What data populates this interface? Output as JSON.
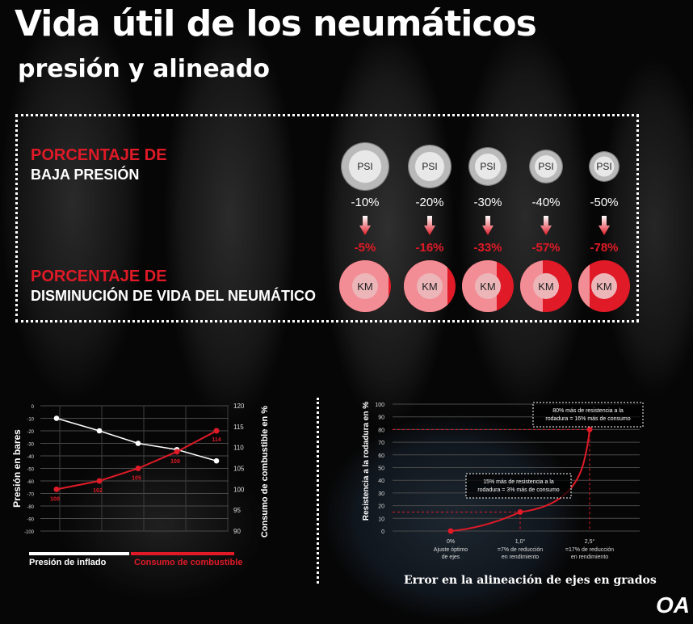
{
  "header": {
    "title": "Vida útil de los neumáticos",
    "subtitle": "presión y alineado"
  },
  "panel": {
    "pressure_label_red": "PORCENTAJE DE",
    "pressure_label_white": "BAJA PRESIÓN",
    "life_label_red": "PORCENTAJE DE",
    "life_label_white": "DISMINUCIÓN DE VIDA DEL NEUMÁTICO",
    "psi_label": "PSI",
    "km_label": "KM",
    "pressure_drop": [
      "-10%",
      "-20%",
      "-30%",
      "-40%",
      "-50%"
    ],
    "life_reduction": [
      "-5%",
      "-16%",
      "-33%",
      "-57%",
      "-78%"
    ],
    "life_reduction_values": [
      5,
      16,
      33,
      57,
      78
    ]
  },
  "colors": {
    "accent": "#e01a27",
    "white": "#ffffff",
    "grid": "#555555"
  },
  "chart_data": [
    {
      "type": "line",
      "ylabel": "Presión en bares",
      "y2label": "Consumo de combustible en %",
      "ylim": [
        -100,
        0
      ],
      "y2lim": [
        90,
        120
      ],
      "yticks": [
        "0",
        "-10",
        "-20",
        "-30",
        "-40",
        "-50",
        "-60",
        "-70",
        "-80",
        "-90",
        "-100"
      ],
      "y2ticks": [
        "90",
        "95",
        "100",
        "105",
        "110",
        "115",
        "120"
      ],
      "grid": true,
      "series": [
        {
          "name": "Presión  de inflado",
          "axis": "left",
          "color": "#ffffff",
          "values": [
            -10,
            -20,
            -30,
            -35,
            -44
          ]
        },
        {
          "name": "Consumo de combustible",
          "axis": "right",
          "color": "#e01a27",
          "values": [
            100,
            102,
            105,
            109,
            114
          ],
          "labels": [
            "100",
            "102",
            "105",
            "109",
            "114"
          ]
        }
      ]
    },
    {
      "type": "line",
      "ylabel": "Resistencia a la rodadura en %",
      "xlabel": "Error en la alineación de ejes en grados",
      "ylim": [
        0,
        100
      ],
      "yticks": [
        "0",
        "10",
        "20",
        "30",
        "40",
        "50",
        "60",
        "70",
        "80",
        "90",
        "100"
      ],
      "grid": true,
      "x": [
        0,
        1.0,
        2.5
      ],
      "xticks": [
        {
          "value": "0%",
          "caption": [
            "Ajuste óptimo",
            "de ejes"
          ]
        },
        {
          "value": "1,0°",
          "caption": [
            "=7% de reducción",
            "en rendimiento"
          ]
        },
        {
          "value": "2,5°",
          "caption": [
            "=17% de reducción",
            "en rendimiento"
          ]
        }
      ],
      "series": [
        {
          "color": "#e01a27",
          "values": [
            0,
            15,
            80
          ]
        }
      ],
      "annotations": [
        [
          "15% más de resistencia a la",
          "rodadura = 3% más de consumo"
        ],
        [
          "80% más de resistencia a la",
          "rodadura = 16% más de consumo"
        ]
      ]
    }
  ],
  "logo": "OA"
}
